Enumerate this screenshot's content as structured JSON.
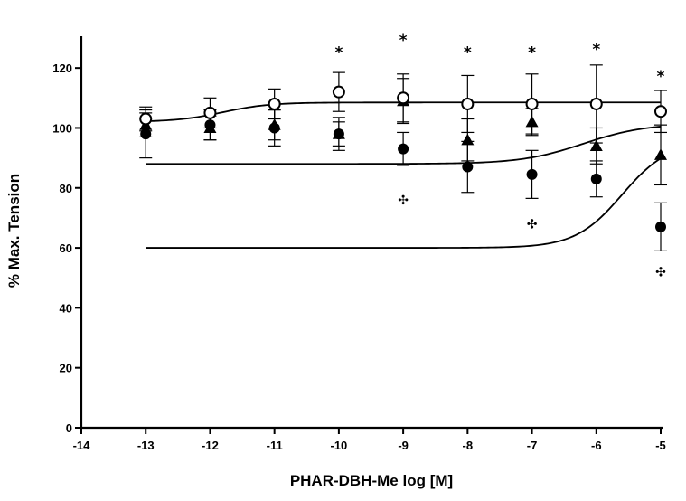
{
  "chart_data": {
    "type": "scatter",
    "title": "",
    "xlabel": "PHAR-DBH-Me log [M]",
    "ylabel": "% Max. Tension",
    "xlim": [
      -14,
      -5
    ],
    "ylim": [
      0,
      130
    ],
    "x_ticks": [
      -14,
      -13,
      -12,
      -11,
      -10,
      -9,
      -8,
      -7,
      -6,
      -5
    ],
    "x_tick_labels": [
      "-14",
      "-13",
      "-12",
      "-11",
      "-10",
      "-9",
      "-8",
      "-7",
      "-6",
      "-5"
    ],
    "y_ticks": [
      0,
      20,
      40,
      60,
      80,
      100,
      120
    ],
    "y_tick_labels": [
      "0",
      "20",
      "40",
      "60",
      "80",
      "100",
      "120"
    ],
    "grid": false,
    "legend": "none",
    "series": [
      {
        "marker": "open-circle",
        "x": [
          -13,
          -12,
          -11,
          -10,
          -9,
          -8,
          -7,
          -6,
          -5
        ],
        "y": [
          103,
          105,
          108,
          112,
          110,
          108,
          108,
          108,
          105.5
        ],
        "err": [
          4,
          5,
          5,
          6.5,
          8,
          9.5,
          10,
          13,
          7
        ],
        "fit": {
          "bottom": 102,
          "top": 108.5,
          "logEC50": -11.8,
          "hill": 1.2
        }
      },
      {
        "marker": "filled-triangle",
        "x": [
          -13,
          -12,
          -11,
          -10,
          -9,
          -8,
          -7,
          -6,
          -5
        ],
        "y": [
          101,
          100,
          101,
          98,
          109,
          96,
          102,
          94,
          91
        ],
        "err": [
          4,
          4,
          5,
          4,
          7.5,
          7,
          4.5,
          6,
          10
        ],
        "fit": {
          "top": 101.5,
          "bottom": 88,
          "logEC50": -6.2,
          "hill": 0.9
        }
      },
      {
        "marker": "filled-circle",
        "x": [
          -13,
          -12,
          -11,
          -10,
          -9,
          -8,
          -7,
          -6,
          -5
        ],
        "y": [
          98,
          101,
          100,
          98,
          93,
          87,
          84.5,
          83,
          67
        ],
        "err": [
          8,
          5,
          6,
          5.5,
          5.5,
          8.5,
          8,
          6,
          8
        ],
        "fit": {
          "top": 95.5,
          "bottom": 60,
          "logEC50": -5.6,
          "hill": 1.2
        }
      }
    ],
    "annotations": [
      {
        "text": "*",
        "x": -10,
        "y": 126
      },
      {
        "text": "*",
        "x": -9,
        "y": 130
      },
      {
        "text": "*",
        "x": -8,
        "y": 126
      },
      {
        "text": "*",
        "x": -7,
        "y": 126
      },
      {
        "text": "*",
        "x": -6,
        "y": 127
      },
      {
        "text": "*",
        "x": -5,
        "y": 118
      },
      {
        "text": "✣",
        "x": -9,
        "y": 76
      },
      {
        "text": "✣",
        "x": -7,
        "y": 68
      },
      {
        "text": "✣",
        "x": -5,
        "y": 52
      }
    ]
  }
}
